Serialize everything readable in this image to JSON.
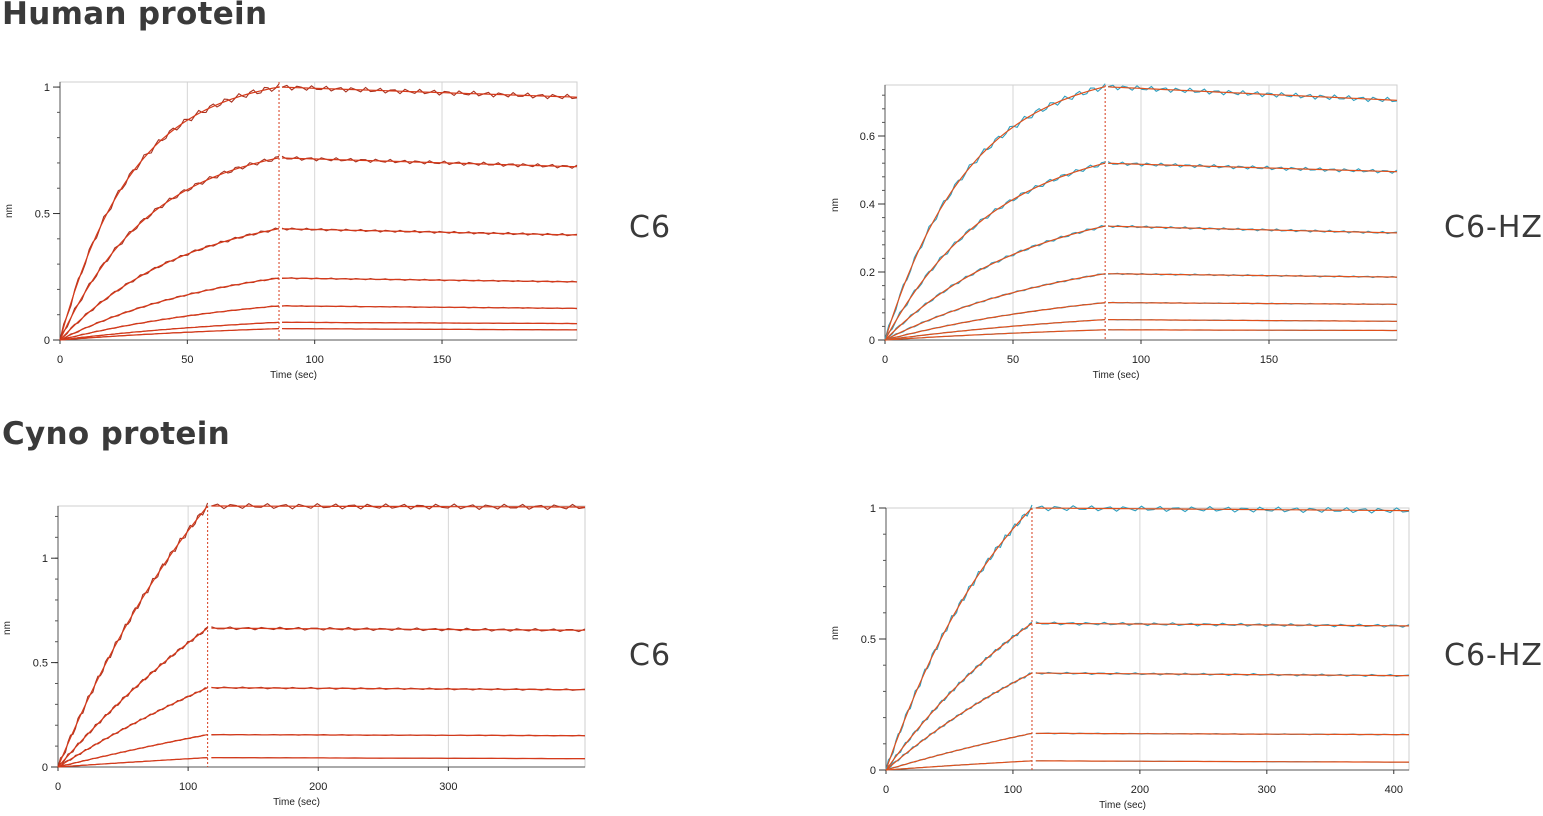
{
  "sections": [
    {
      "title": "Human protein"
    },
    {
      "title": "Cyno protein"
    }
  ],
  "chart_data": [
    {
      "type": "line",
      "sample_label": "C6",
      "xlabel": "Time (sec)",
      "ylabel": "nm",
      "xlim": [
        0,
        203
      ],
      "ylim": [
        0,
        1.02
      ],
      "xticks": [
        0,
        50,
        100,
        150
      ],
      "yticks": [
        0,
        0.5,
        1
      ],
      "dissociation_start": 86,
      "grid": true,
      "fit_color": "#d63a1a",
      "data_color": "#a83220",
      "series_peaks": [
        1.0,
        0.72,
        0.44,
        0.245,
        0.135,
        0.07,
        0.045
      ],
      "series_end": [
        0.96,
        0.685,
        0.415,
        0.23,
        0.125,
        0.065,
        0.04
      ],
      "kobs_factor": 0.035
    },
    {
      "type": "line",
      "sample_label": "C6-HZ",
      "xlabel": "Time (sec)",
      "ylabel": "nm",
      "xlim": [
        0,
        200
      ],
      "ylim": [
        0,
        0.75
      ],
      "xticks": [
        0,
        50,
        100,
        150
      ],
      "yticks": [
        0,
        0.2,
        0.4,
        0.6
      ],
      "dissociation_start": 86,
      "grid": true,
      "fit_color": "#e0501c",
      "data_color": "#2f9fbf",
      "series_peaks": [
        0.745,
        0.52,
        0.335,
        0.195,
        0.11,
        0.06,
        0.03
      ],
      "series_end": [
        0.705,
        0.495,
        0.315,
        0.185,
        0.105,
        0.055,
        0.028
      ],
      "kobs_factor": 0.03
    },
    {
      "type": "line",
      "sample_label": "C6",
      "xlabel": "Time (sec)",
      "ylabel": "nm",
      "xlim": [
        0,
        405
      ],
      "ylim": [
        0,
        1.25
      ],
      "xticks": [
        0,
        100,
        200,
        300
      ],
      "yticks": [
        0,
        0.5,
        1
      ],
      "dissociation_start": 115,
      "grid": true,
      "fit_color": "#d63a1a",
      "data_color": "#a83220",
      "series_peaks": [
        1.25,
        0.665,
        0.38,
        0.155,
        0.045
      ],
      "series_end": [
        1.245,
        0.655,
        0.37,
        0.15,
        0.04
      ],
      "kobs_factor": 0.006
    },
    {
      "type": "line",
      "sample_label": "C6-HZ",
      "xlabel": "Time (sec)",
      "ylabel": "nm",
      "xlim": [
        0,
        412
      ],
      "ylim": [
        0,
        1.0
      ],
      "xticks": [
        0,
        100,
        200,
        300,
        400
      ],
      "yticks": [
        0,
        0.5,
        1
      ],
      "dissociation_start": 115,
      "grid": true,
      "fit_color": "#e0501c",
      "data_color": "#2f9fbf",
      "series_peaks": [
        1.0,
        0.56,
        0.37,
        0.14,
        0.035
      ],
      "series_end": [
        0.99,
        0.55,
        0.36,
        0.135,
        0.03
      ],
      "kobs_factor": 0.009
    }
  ]
}
